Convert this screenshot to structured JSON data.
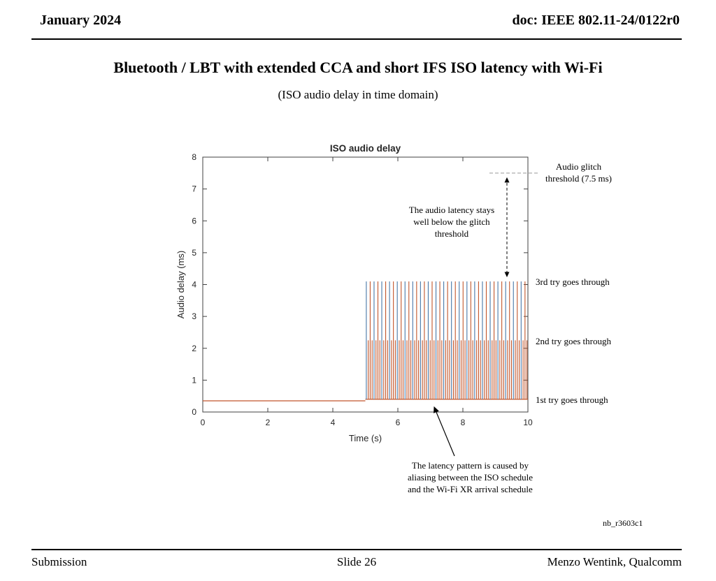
{
  "header": {
    "date": "January 2024",
    "doc": "doc: IEEE 802.11-24/0122r0"
  },
  "title": "Bluetooth / LBT with extended CCA and short IFS ISO latency with Wi-Fi",
  "subtitle": "(ISO audio delay in time domain)",
  "chart_data": {
    "type": "line",
    "title": "ISO audio delay",
    "xlabel": "Time (s)",
    "ylabel": "Audio delay (ms)",
    "xlim": [
      0,
      10
    ],
    "ylim": [
      0,
      8
    ],
    "xticks": [
      0,
      2,
      4,
      6,
      8,
      10
    ],
    "yticks": [
      0,
      1,
      2,
      3,
      4,
      5,
      6,
      7,
      8
    ],
    "grid": false,
    "glitch_threshold_ms": 7.5,
    "baseline_delay_ms": 0.35,
    "quiet_region": [
      0,
      5
    ],
    "burst_region": [
      5,
      10
    ],
    "burst_levels": {
      "first_try": 0.4,
      "second_try": 2.25,
      "third_try": 4.1
    },
    "spike_count": 84,
    "series": [
      {
        "name": "series1",
        "description": "spikes reaching 3rd-try level (4.1 ms), alternating color"
      },
      {
        "name": "series2",
        "description": "spikes reaching 2nd-try level (2.25 ms) and baseline at 0.35-0.4 ms"
      }
    ],
    "colors": {
      "series1": "#4878a8",
      "series2": "#c2562c",
      "axis": "#404040",
      "threshold_line": "#999999"
    }
  },
  "annotations": {
    "glitch_threshold": "Audio glitch\nthreshold (7.5 ms)",
    "latency_note": "The audio latency stays\nwell below the glitch\nthreshold",
    "third_try": "3rd try goes through",
    "second_try": "2nd try goes through",
    "first_try": "1st try goes through",
    "aliasing_note": "The latency pattern is caused by\naliasing between the ISO schedule\nand the Wi-Fi XR arrival schedule",
    "fig_id": "nb_r3603c1"
  },
  "footer": {
    "left": "Submission",
    "center": "Slide 26",
    "right": "Menzo Wentink, Qualcomm"
  }
}
